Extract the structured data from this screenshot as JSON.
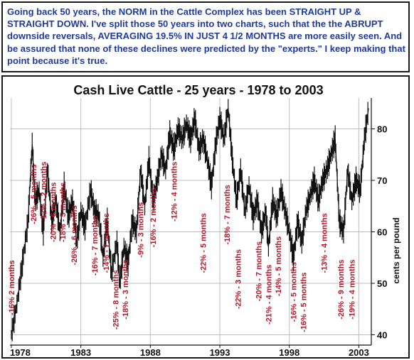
{
  "header": {
    "text": "Going back 50 years, the NORM in the Cattle Complex has been STRAIGHT UP & STRAIGHT DOWN. I've split those 50 years into two charts, such that the the ABRUPT downside reversals, AVERAGING 19.5% IN JUST 4 1/2 MONTHS are more easily seen. And be assured that none of these declines were predicted by the \"experts.\" I keep making that point because it's true."
  },
  "chart_data": {
    "type": "line",
    "title": "Cash Live Cattle - 25 years - 1978 to 2003",
    "ylabel": "cents per pound",
    "xlim": [
      1977.9,
      2003.9
    ],
    "ylim": [
      38,
      86
    ],
    "x_ticks": [
      "1978",
      "1983",
      "1988",
      "1993",
      "1998",
      "2003"
    ],
    "y_ticks": [
      "40",
      "50",
      "60",
      "70",
      "80"
    ],
    "grid": true,
    "colors": {
      "line": "#111111",
      "grid": "#bdbdbd",
      "annotation": "#b0192a",
      "header_text": "#1f3a9a"
    },
    "series": [
      {
        "x": [
          1978.0,
          1978.4,
          1978.8,
          1979.2,
          1979.5,
          1979.7,
          1980.0,
          1980.3,
          1980.6,
          1980.9,
          1981.2,
          1981.5,
          1981.8,
          1982.1,
          1982.4,
          1982.7,
          1983.0,
          1983.3,
          1983.7,
          1984.0,
          1984.3,
          1984.6,
          1984.9,
          1985.2,
          1985.6,
          1985.8,
          1986.1,
          1986.4,
          1986.7,
          1987.0,
          1987.3,
          1987.6,
          1987.9,
          1988.2,
          1988.5,
          1988.8,
          1989.1,
          1989.4,
          1989.7,
          1990.0,
          1990.3,
          1990.6,
          1990.9,
          1991.2,
          1991.5,
          1991.8,
          1992.1,
          1992.4,
          1992.7,
          1993.0,
          1993.3,
          1993.6,
          1993.9,
          1994.2,
          1994.5,
          1994.8,
          1995.1,
          1995.4,
          1995.7,
          1996.0,
          1996.3,
          1996.5,
          1996.8,
          1997.1,
          1997.4,
          1997.7,
          1998.0,
          1998.3,
          1998.6,
          1998.9,
          1999.2,
          1999.5,
          1999.8,
          2000.1,
          2000.4,
          2000.7,
          2001.0,
          2001.3,
          2001.6,
          2001.9,
          2002.2,
          2002.5,
          2002.8,
          2003.1,
          2003.4,
          2003.7
        ],
        "y": [
          40,
          46,
          54,
          62,
          77,
          66,
          68,
          60,
          72,
          62,
          66,
          60,
          69,
          63,
          66,
          58,
          64,
          61,
          68,
          64,
          63,
          55,
          62,
          52,
          58,
          50,
          57,
          54,
          62,
          60,
          72,
          65,
          74,
          66,
          70,
          75,
          72,
          79,
          76,
          80,
          78,
          81,
          78,
          82,
          76,
          78,
          74,
          69,
          77,
          82,
          78,
          84,
          74,
          66,
          72,
          64,
          69,
          63,
          66,
          60,
          64,
          57,
          66,
          63,
          68,
          64,
          60,
          55,
          62,
          58,
          64,
          67,
          70,
          66,
          70,
          72,
          75,
          78,
          62,
          60,
          72,
          66,
          70,
          68,
          78,
          84
        ]
      }
    ],
    "annotations": [
      {
        "text": "-16% 2 months",
        "x": 1978.0,
        "y": 43.8
      },
      {
        "text": "-26% - 5 months",
        "x": 1979.6,
        "y": 61.5
      },
      {
        "text": "-12% - 2 months",
        "x": 1980.3,
        "y": 62
      },
      {
        "text": "-20% - 6 months",
        "x": 1981.0,
        "y": 58
      },
      {
        "text": "-18% - 5 months",
        "x": 1981.7,
        "y": 58
      },
      {
        "text": "-26% - 6 months",
        "x": 1982.5,
        "y": 53.5
      },
      {
        "text": "-16% - 7 months",
        "x": 1984.0,
        "y": 51.5
      },
      {
        "text": "-14% - 7 months",
        "x": 1984.8,
        "y": 52
      },
      {
        "text": "-25% - 8 months",
        "x": 1985.5,
        "y": 41
      },
      {
        "text": "-18% - 3 months",
        "x": 1986.2,
        "y": 43
      },
      {
        "text": "-9% - 3 months",
        "x": 1987.3,
        "y": 55
      },
      {
        "text": "-16% - 2 months",
        "x": 1988.2,
        "y": 57
      },
      {
        "text": "-12% - 4 months",
        "x": 1989.7,
        "y": 62
      },
      {
        "text": "-22% - 5 months",
        "x": 1991.8,
        "y": 52
      },
      {
        "text": "-18% - 7 months",
        "x": 1993.5,
        "y": 57.5
      },
      {
        "text": "-22% - 3 months",
        "x": 1994.3,
        "y": 45
      },
      {
        "text": "-20% - 7 months",
        "x": 1995.8,
        "y": 46.5
      },
      {
        "text": "-21% - 4 months",
        "x": 1996.5,
        "y": 42
      },
      {
        "text": "-14% - 5 months",
        "x": 1997.2,
        "y": 47.5
      },
      {
        "text": "-16% - 5 months",
        "x": 1998.3,
        "y": 42.5
      },
      {
        "text": "-16% - 5 months",
        "x": 1999.0,
        "y": 40.5
      },
      {
        "text": "-13% - 4 months",
        "x": 2000.5,
        "y": 52
      },
      {
        "text": "-26% - 9 months",
        "x": 2001.7,
        "y": 43
      },
      {
        "text": "-19% - 4 months",
        "x": 2002.5,
        "y": 43
      }
    ]
  }
}
